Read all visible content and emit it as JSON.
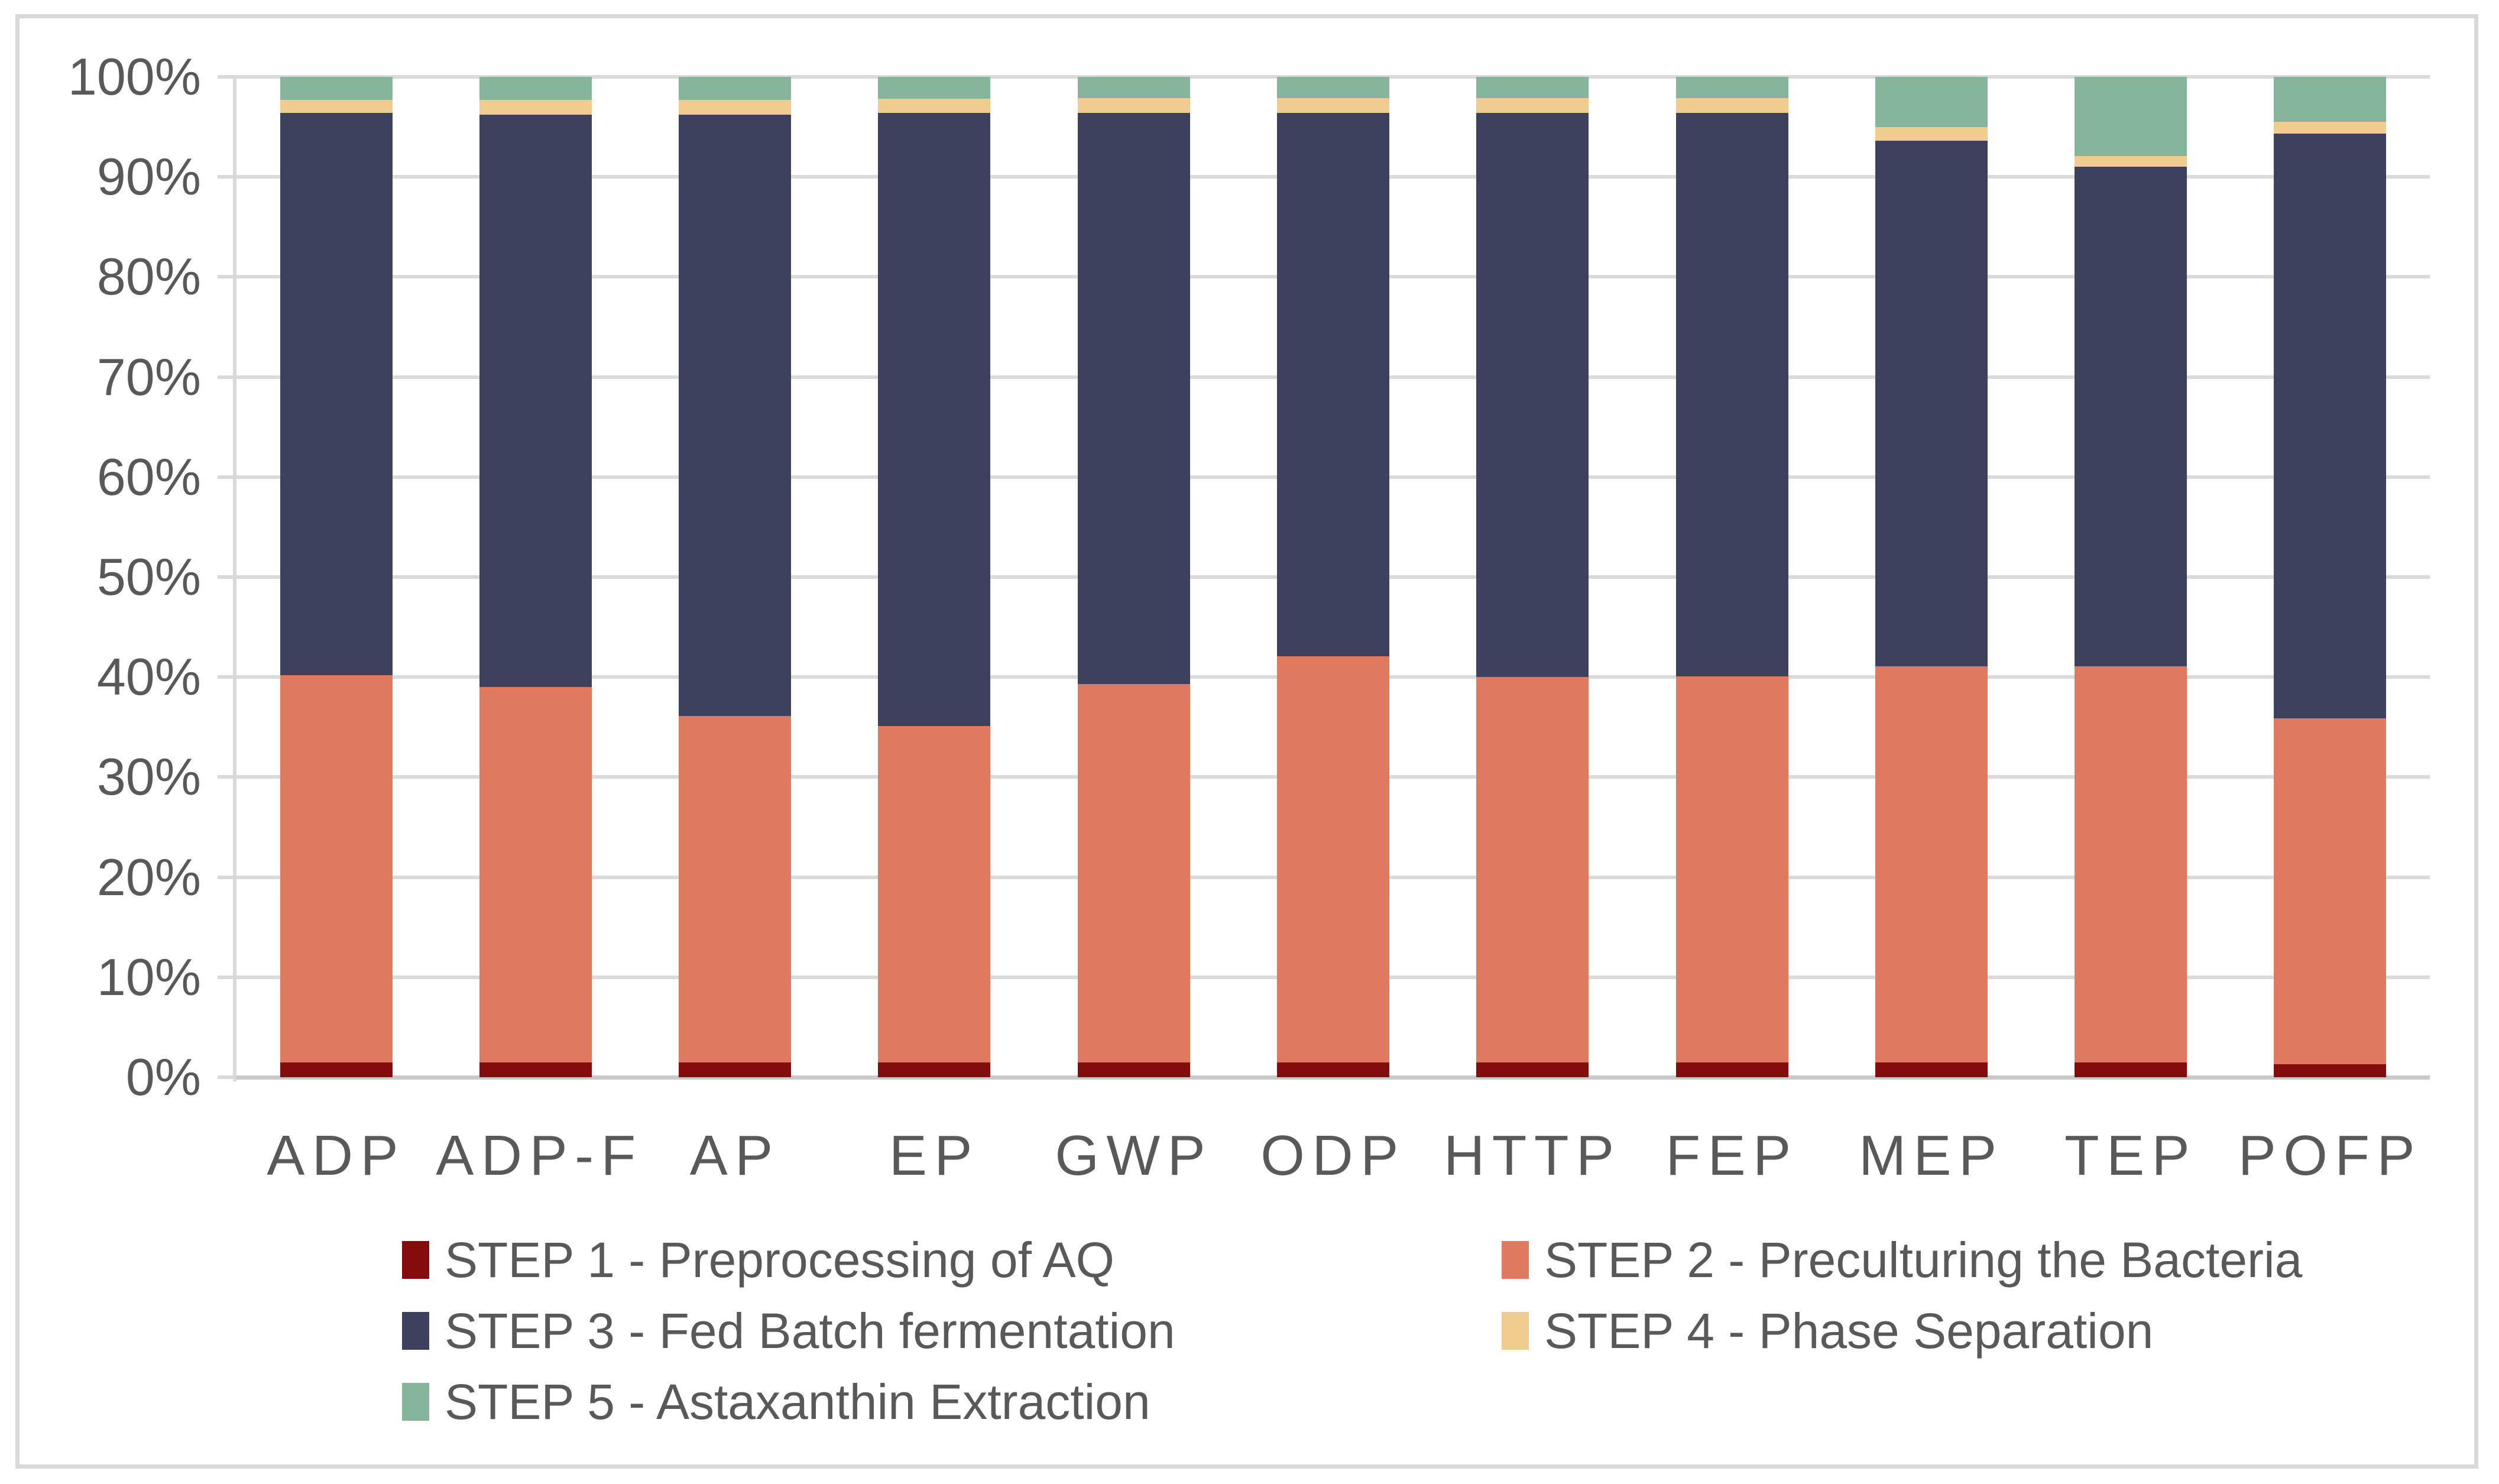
{
  "chart_data": {
    "type": "bar",
    "variant": "100-percent-stacked-column",
    "title": "",
    "xlabel": "",
    "ylabel": "",
    "ylim": [
      0,
      100
    ],
    "grid": true,
    "legend_position": "bottom",
    "y_ticks": [
      "100%",
      "90%",
      "80%",
      "70%",
      "60%",
      "50%",
      "40%",
      "30%",
      "20%",
      "10%",
      "0%"
    ],
    "categories": [
      "ADP",
      "ADP-F",
      "AP",
      "EP",
      "GWP",
      "ODP",
      "HTTP",
      "FEP",
      "MEP",
      "TEP",
      "POFP"
    ],
    "series": [
      {
        "name": "STEP 1 - Preprocessing of AQ",
        "color": "#830D0C",
        "values": [
          1.5,
          1.5,
          1.5,
          1.5,
          1.5,
          1.5,
          1.5,
          1.5,
          1.5,
          1.5,
          1.3
        ]
      },
      {
        "name": "STEP 2 - Preculturing the Bacteria",
        "color": "#DF7960",
        "values": [
          38.7,
          37.5,
          34.6,
          33.6,
          37.8,
          40.6,
          38.5,
          38.6,
          39.6,
          39.6,
          34.6
        ]
      },
      {
        "name": "STEP 3 - Fed Batch fermentation",
        "color": "#3D415E",
        "values": [
          56.2,
          57.2,
          60.1,
          61.3,
          57.1,
          54.3,
          56.4,
          56.3,
          52.5,
          49.9,
          58.4
        ]
      },
      {
        "name": "STEP 4 - Phase Separation",
        "color": "#F0CC8E",
        "values": [
          1.3,
          1.5,
          1.5,
          1.4,
          1.5,
          1.5,
          1.5,
          1.5,
          1.4,
          1.1,
          1.2
        ]
      },
      {
        "name": "STEP 5 - Astaxanthin Extraction",
        "color": "#85B69B",
        "values": [
          2.3,
          2.3,
          2.3,
          2.2,
          2.1,
          2.1,
          2.1,
          2.1,
          5.0,
          7.9,
          4.5
        ]
      }
    ]
  },
  "style": {
    "gridline_color": "#DADADA",
    "zero_line_color": "#C9C9C9",
    "axis_label_color": "#595959",
    "frame_border_color": "#D9D9D9"
  }
}
